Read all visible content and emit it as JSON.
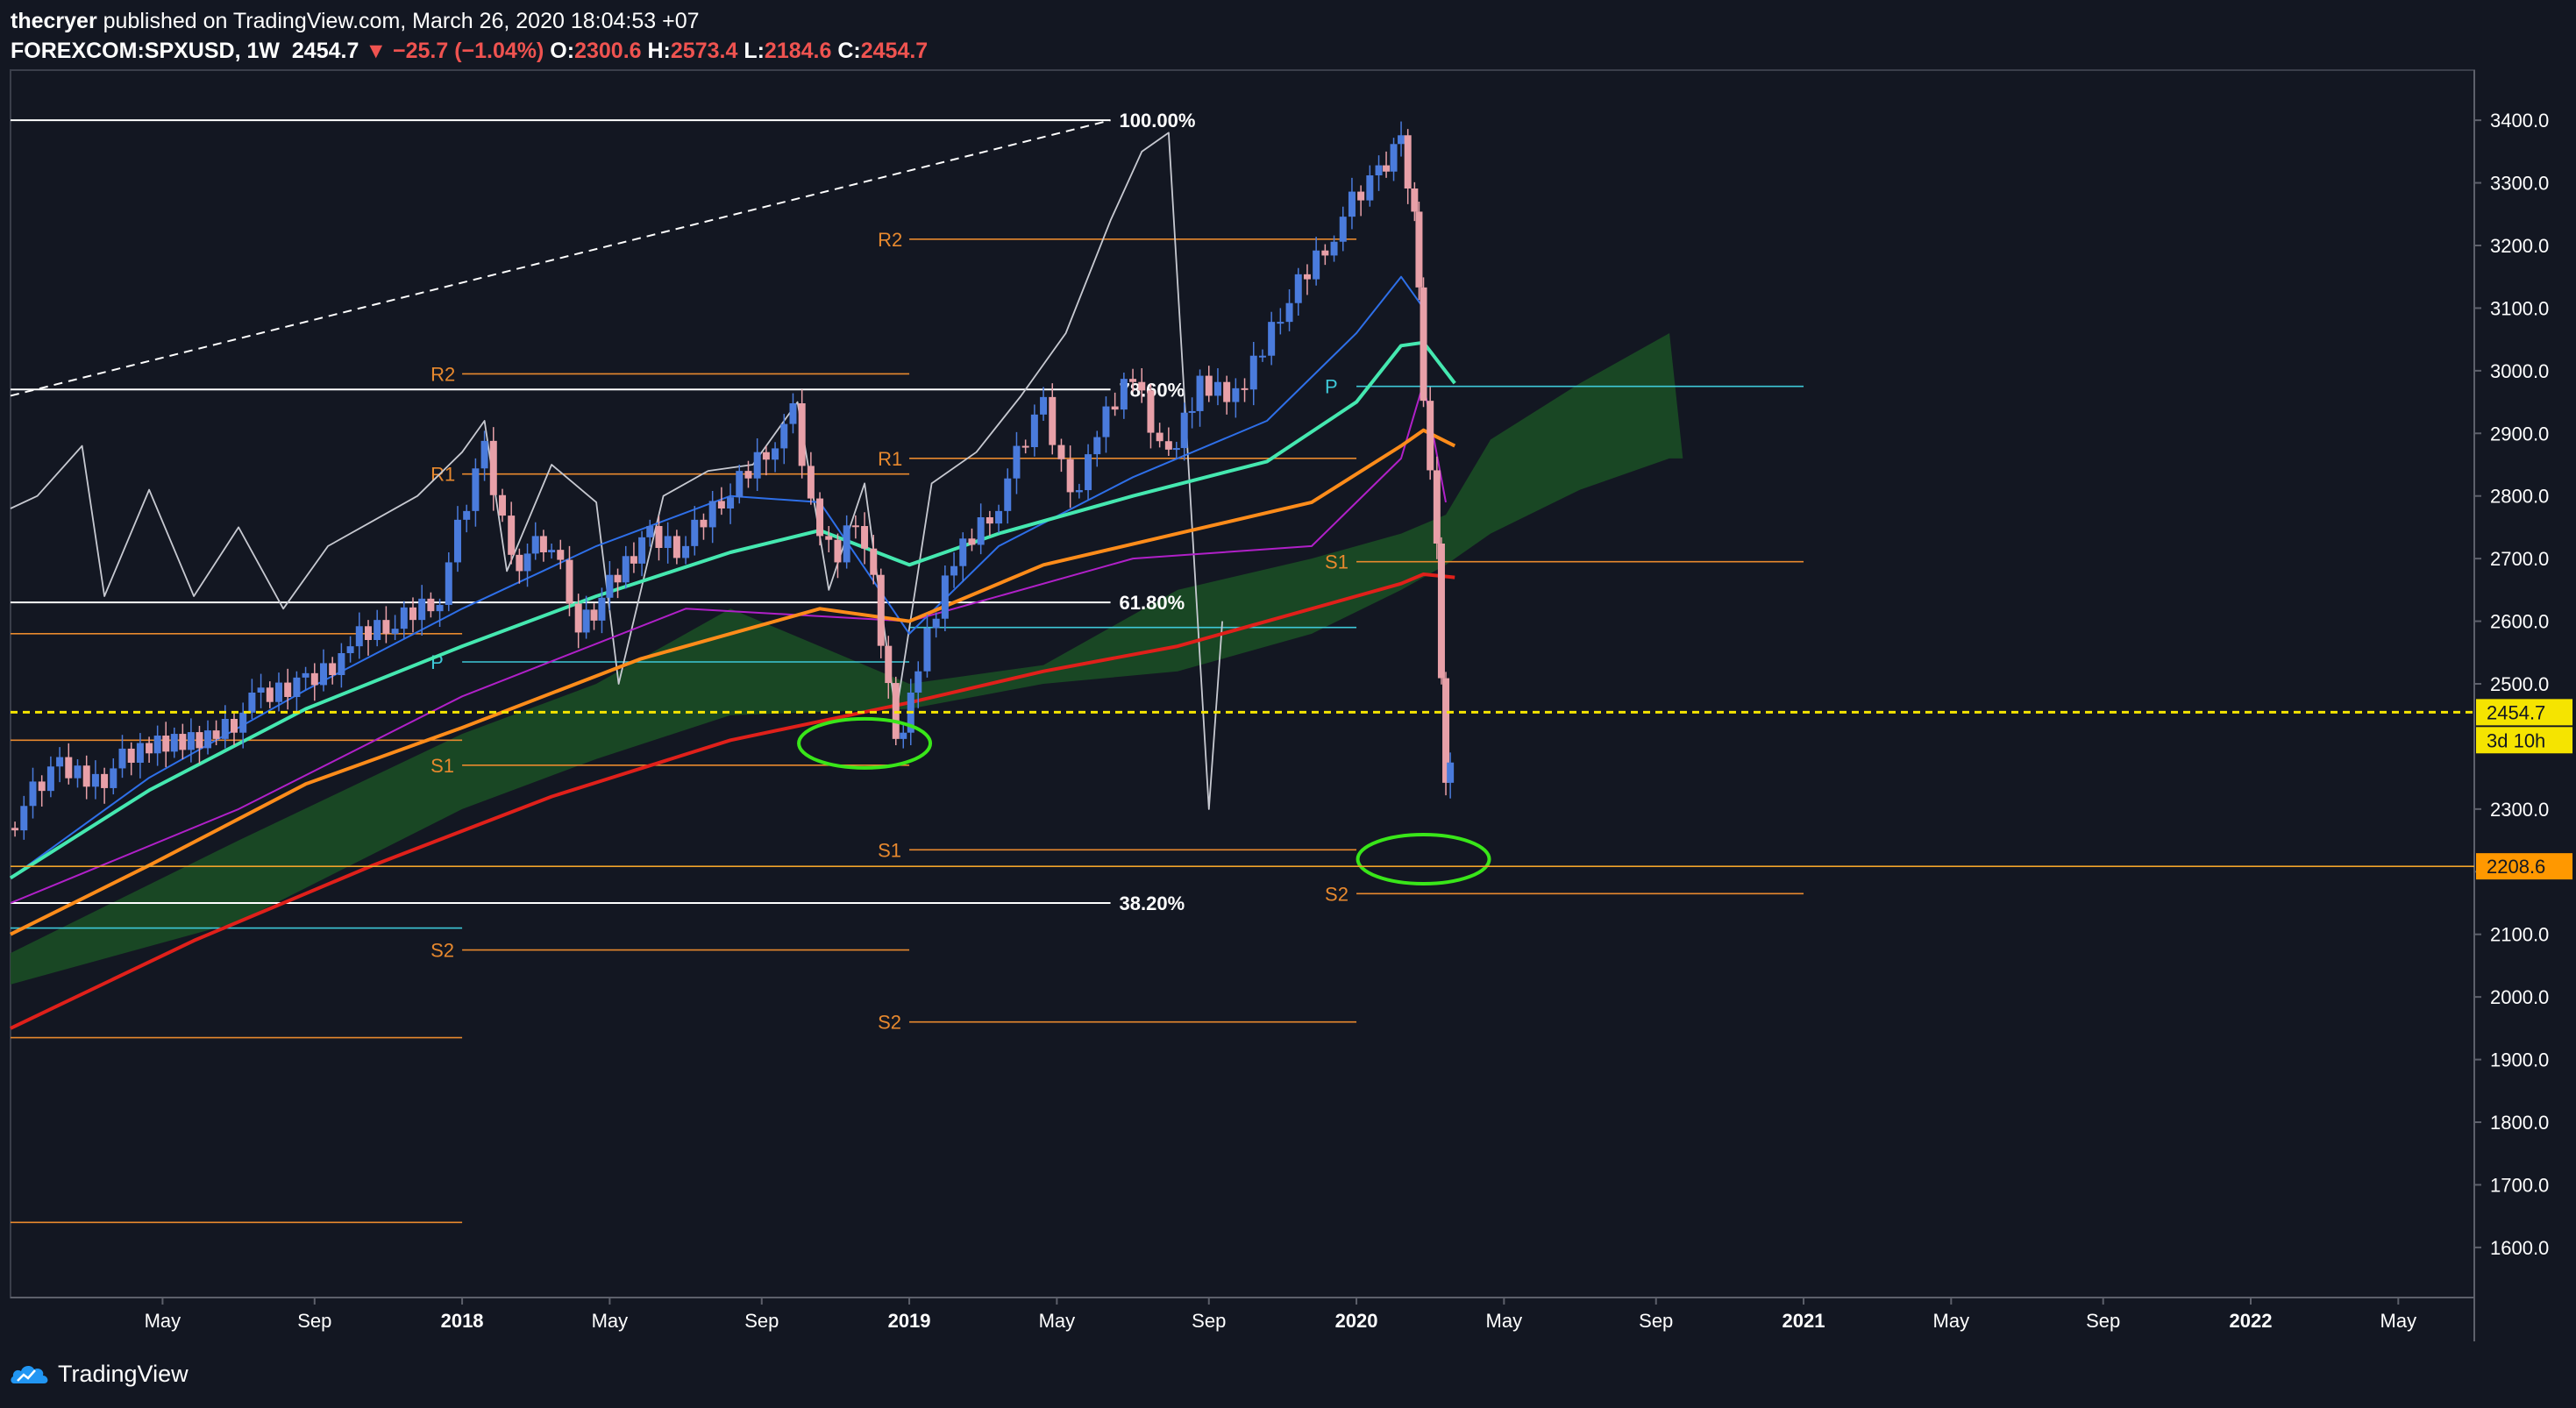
{
  "header": {
    "author": "thecryer",
    "published_text": "published on TradingView.com, March 26, 2020 18:04:53 +07",
    "symbol": "FOREXCOM:SPXUSD, 1W",
    "last": "2454.7",
    "change": "▼ −25.7 (−1.04%)",
    "o_label": "O:",
    "o": "2300.6",
    "h_label": "H:",
    "h": "2573.4",
    "l_label": "L:",
    "l": "2184.6",
    "c_label": "C:",
    "c": "2454.7"
  },
  "footer": {
    "brand": "TradingView"
  },
  "colors": {
    "background": "#131722",
    "candle_up": "#4a7bdc",
    "candle_down": "#e8a0a8",
    "price_line": "#f5e400",
    "ma_teal": "#45e8b0",
    "ma_orange": "#ff8c1a",
    "ma_red": "#e0201a",
    "pivot": "#e8892e",
    "pivot_p": "#3ec8d8",
    "cloud": "#1b4d25",
    "annotation": "#39e619"
  },
  "chart_data": {
    "type": "line",
    "instrument": "FOREXCOM:SPXUSD",
    "interval": "1W",
    "ylim": [
      1520,
      3480
    ],
    "y_ticks": [
      "3400.0",
      "3300.0",
      "3200.0",
      "3100.0",
      "3000.0",
      "2900.0",
      "2800.0",
      "2700.0",
      "2600.0",
      "2500.0",
      "2300.0",
      "2200.0",
      "2100.0",
      "2000.0",
      "1900.0",
      "1800.0",
      "1700.0",
      "1600.0"
    ],
    "x_ticks": [
      {
        "label": "May",
        "x": 2017.33
      },
      {
        "label": "Sep",
        "x": 2017.67
      },
      {
        "label": "2018",
        "x": 2018.0
      },
      {
        "label": "May",
        "x": 2018.33
      },
      {
        "label": "Sep",
        "x": 2018.67
      },
      {
        "label": "2019",
        "x": 2019.0
      },
      {
        "label": "May",
        "x": 2019.33
      },
      {
        "label": "Sep",
        "x": 2019.67
      },
      {
        "label": "2020",
        "x": 2020.0
      },
      {
        "label": "May",
        "x": 2020.33
      },
      {
        "label": "Sep",
        "x": 2020.67
      },
      {
        "label": "2021",
        "x": 2021.0
      },
      {
        "label": "May",
        "x": 2021.33
      },
      {
        "label": "Sep",
        "x": 2021.67
      },
      {
        "label": "2022",
        "x": 2022.0
      },
      {
        "label": "May",
        "x": 2022.33
      }
    ],
    "price_labels": [
      {
        "text": "2454.7",
        "value": 2454.7,
        "style": "current"
      },
      {
        "text": "3d 10h",
        "value": 2410,
        "style": "countdown"
      },
      {
        "text": "2208.6",
        "value": 2208.6,
        "style": "low"
      }
    ],
    "current_price": 2454.7,
    "low_line": 2208.6,
    "series": [
      {
        "name": "",
        "role": "close",
        "values": [
          [
            2017.0,
            2290
          ],
          [
            2017.1,
            2365
          ],
          [
            2017.18,
            2350
          ],
          [
            2017.3,
            2395
          ],
          [
            2017.45,
            2430
          ],
          [
            2017.55,
            2470
          ],
          [
            2017.65,
            2505
          ],
          [
            2017.75,
            2560
          ],
          [
            2017.85,
            2600
          ],
          [
            2017.95,
            2650
          ],
          [
            2018.05,
            2870
          ],
          [
            2018.11,
            2700
          ],
          [
            2018.2,
            2720
          ],
          [
            2018.26,
            2600
          ],
          [
            2018.33,
            2650
          ],
          [
            2018.42,
            2740
          ],
          [
            2018.5,
            2720
          ],
          [
            2018.6,
            2810
          ],
          [
            2018.7,
            2900
          ],
          [
            2018.74,
            2930
          ],
          [
            2018.78,
            2790
          ],
          [
            2018.84,
            2700
          ],
          [
            2018.88,
            2770
          ],
          [
            2018.92,
            2650
          ],
          [
            2018.97,
            2400
          ],
          [
            2019.02,
            2520
          ],
          [
            2019.1,
            2700
          ],
          [
            2019.2,
            2800
          ],
          [
            2019.3,
            2940
          ],
          [
            2019.36,
            2800
          ],
          [
            2019.42,
            2900
          ],
          [
            2019.5,
            3000
          ],
          [
            2019.58,
            2850
          ],
          [
            2019.65,
            2980
          ],
          [
            2019.75,
            2970
          ],
          [
            2019.85,
            3120
          ],
          [
            2019.95,
            3230
          ],
          [
            2020.05,
            3310
          ],
          [
            2020.1,
            3370
          ],
          [
            2020.13,
            3260
          ],
          [
            2020.15,
            2970
          ],
          [
            2020.18,
            2700
          ],
          [
            2020.2,
            2330
          ],
          [
            2020.22,
            2454.7
          ]
        ]
      },
      {
        "name": "",
        "role": "ma_teal",
        "values": [
          [
            2016.99,
            2190
          ],
          [
            2017.3,
            2330
          ],
          [
            2017.65,
            2460
          ],
          [
            2018.0,
            2560
          ],
          [
            2018.3,
            2640
          ],
          [
            2018.6,
            2710
          ],
          [
            2018.8,
            2745
          ],
          [
            2019.0,
            2690
          ],
          [
            2019.2,
            2740
          ],
          [
            2019.5,
            2800
          ],
          [
            2019.8,
            2855
          ],
          [
            2020.0,
            2950
          ],
          [
            2020.1,
            3040
          ],
          [
            2020.15,
            3045
          ],
          [
            2020.22,
            2980
          ]
        ]
      },
      {
        "name": "",
        "role": "ma_orange",
        "values": [
          [
            2016.99,
            2100
          ],
          [
            2017.3,
            2210
          ],
          [
            2017.65,
            2340
          ],
          [
            2018.0,
            2430
          ],
          [
            2018.4,
            2540
          ],
          [
            2018.8,
            2620
          ],
          [
            2019.0,
            2600
          ],
          [
            2019.3,
            2690
          ],
          [
            2019.6,
            2740
          ],
          [
            2019.9,
            2790
          ],
          [
            2020.1,
            2880
          ],
          [
            2020.15,
            2905
          ],
          [
            2020.22,
            2880
          ]
        ]
      },
      {
        "name": "",
        "role": "ma_red",
        "values": [
          [
            2016.99,
            1950
          ],
          [
            2017.4,
            2090
          ],
          [
            2017.8,
            2210
          ],
          [
            2018.2,
            2320
          ],
          [
            2018.6,
            2410
          ],
          [
            2019.0,
            2470
          ],
          [
            2019.3,
            2520
          ],
          [
            2019.6,
            2560
          ],
          [
            2019.9,
            2620
          ],
          [
            2020.1,
            2660
          ],
          [
            2020.15,
            2675
          ],
          [
            2020.22,
            2670
          ]
        ]
      },
      {
        "name": "",
        "role": "oscillator",
        "values": [
          [
            2016.99,
            2780
          ],
          [
            2017.05,
            2800
          ],
          [
            2017.15,
            2880
          ],
          [
            2017.2,
            2640
          ],
          [
            2017.3,
            2810
          ],
          [
            2017.4,
            2640
          ],
          [
            2017.5,
            2750
          ],
          [
            2017.6,
            2620
          ],
          [
            2017.7,
            2720
          ],
          [
            2017.8,
            2760
          ],
          [
            2017.9,
            2800
          ],
          [
            2018.0,
            2870
          ],
          [
            2018.05,
            2920
          ],
          [
            2018.1,
            2680
          ],
          [
            2018.2,
            2850
          ],
          [
            2018.3,
            2790
          ],
          [
            2018.35,
            2500
          ],
          [
            2018.45,
            2800
          ],
          [
            2018.55,
            2840
          ],
          [
            2018.65,
            2850
          ],
          [
            2018.75,
            2950
          ],
          [
            2018.82,
            2650
          ],
          [
            2018.9,
            2820
          ],
          [
            2018.97,
            2450
          ],
          [
            2019.05,
            2820
          ],
          [
            2019.15,
            2870
          ],
          [
            2019.25,
            2960
          ],
          [
            2019.35,
            3060
          ],
          [
            2019.45,
            3240
          ],
          [
            2019.52,
            3350
          ],
          [
            2019.58,
            3380
          ],
          [
            2019.62,
            2900
          ],
          [
            2019.67,
            2300
          ],
          [
            2019.7,
            2600
          ]
        ]
      },
      {
        "name": "",
        "role": "ma_blue",
        "values": [
          [
            2016.99,
            2190
          ],
          [
            2017.3,
            2350
          ],
          [
            2017.65,
            2490
          ],
          [
            2018.0,
            2620
          ],
          [
            2018.3,
            2720
          ],
          [
            2018.6,
            2800
          ],
          [
            2018.8,
            2790
          ],
          [
            2019.0,
            2580
          ],
          [
            2019.2,
            2720
          ],
          [
            2019.5,
            2830
          ],
          [
            2019.8,
            2920
          ],
          [
            2020.0,
            3060
          ],
          [
            2020.1,
            3150
          ],
          [
            2020.15,
            3100
          ]
        ]
      },
      {
        "name": "",
        "role": "ma_purple",
        "values": [
          [
            2016.99,
            2150
          ],
          [
            2017.5,
            2300
          ],
          [
            2018.0,
            2480
          ],
          [
            2018.5,
            2620
          ],
          [
            2019.0,
            2600
          ],
          [
            2019.5,
            2700
          ],
          [
            2019.9,
            2720
          ],
          [
            2020.1,
            2860
          ],
          [
            2020.15,
            2980
          ],
          [
            2020.2,
            2790
          ]
        ]
      },
      {
        "name": "",
        "role": "cloud_top",
        "values": [
          [
            2016.99,
            2070
          ],
          [
            2017.5,
            2250
          ],
          [
            2018.0,
            2420
          ],
          [
            2018.3,
            2500
          ],
          [
            2018.6,
            2620
          ],
          [
            2019.0,
            2500
          ],
          [
            2019.3,
            2530
          ],
          [
            2019.6,
            2650
          ],
          [
            2019.9,
            2700
          ],
          [
            2020.1,
            2740
          ],
          [
            2020.2,
            2770
          ],
          [
            2020.3,
            2890
          ],
          [
            2020.5,
            2980
          ],
          [
            2020.7,
            3060
          ],
          [
            2020.73,
            2860
          ]
        ]
      },
      {
        "name": "",
        "role": "cloud_bottom",
        "values": [
          [
            2016.99,
            2020
          ],
          [
            2017.5,
            2120
          ],
          [
            2018.0,
            2300
          ],
          [
            2018.3,
            2380
          ],
          [
            2018.6,
            2450
          ],
          [
            2019.0,
            2460
          ],
          [
            2019.3,
            2500
          ],
          [
            2019.6,
            2520
          ],
          [
            2019.9,
            2580
          ],
          [
            2020.1,
            2650
          ],
          [
            2020.2,
            2690
          ],
          [
            2020.3,
            2740
          ],
          [
            2020.5,
            2810
          ],
          [
            2020.7,
            2860
          ],
          [
            2020.73,
            2860
          ]
        ]
      }
    ],
    "horizontal_lines": [
      {
        "label": "100.00%",
        "value": 3400,
        "x1": 2016.99,
        "x2": 2019.45,
        "kind": "fib"
      },
      {
        "label": "78.60%",
        "value": 2970,
        "x1": 2016.99,
        "x2": 2019.45,
        "kind": "fib"
      },
      {
        "label": "61.80%",
        "value": 2630,
        "x1": 2016.99,
        "x2": 2019.45,
        "kind": "fib"
      },
      {
        "label": "38.20%",
        "value": 2150,
        "x1": 2016.99,
        "x2": 2019.45,
        "kind": "fib"
      },
      {
        "label": "R2",
        "value": 3210,
        "x1": 2019.0,
        "x2": 2020.0,
        "kind": "pivot"
      },
      {
        "label": "R2",
        "value": 2995,
        "x1": 2018.0,
        "x2": 2019.0,
        "kind": "pivot"
      },
      {
        "label": "R1",
        "value": 2835,
        "x1": 2018.0,
        "x2": 2019.0,
        "kind": "pivot"
      },
      {
        "label": "R1",
        "value": 2860,
        "x1": 2019.0,
        "x2": 2020.0,
        "kind": "pivot"
      },
      {
        "label": "S1",
        "value": 2695,
        "x1": 2020.0,
        "x2": 2021.0,
        "kind": "pivot"
      },
      {
        "label": "S1",
        "value": 2370,
        "x1": 2018.0,
        "x2": 2019.0,
        "kind": "pivot"
      },
      {
        "label": "S1",
        "value": 2235,
        "x1": 2019.0,
        "x2": 2020.0,
        "kind": "pivot"
      },
      {
        "label": "S2",
        "value": 2165,
        "x1": 2020.0,
        "x2": 2021.0,
        "kind": "pivot"
      },
      {
        "label": "S2",
        "value": 2075,
        "x1": 2018.0,
        "x2": 2019.0,
        "kind": "pivot"
      },
      {
        "label": "S2",
        "value": 1960,
        "x1": 2019.0,
        "x2": 2020.0,
        "kind": "pivot"
      },
      {
        "label": "",
        "value": 2580,
        "x1": 2016.99,
        "x2": 2018.0,
        "kind": "pivot"
      },
      {
        "label": "",
        "value": 2410,
        "x1": 2016.99,
        "x2": 2018.0,
        "kind": "pivot"
      },
      {
        "label": "",
        "value": 1935,
        "x1": 2016.99,
        "x2": 2018.0,
        "kind": "pivot"
      },
      {
        "label": "",
        "value": 1640,
        "x1": 2016.99,
        "x2": 2018.0,
        "kind": "pivot"
      },
      {
        "label": "P",
        "value": 2975,
        "x1": 2020.0,
        "x2": 2021.0,
        "kind": "pivot_p"
      },
      {
        "label": "P",
        "value": 2535,
        "x1": 2018.0,
        "x2": 2019.0,
        "kind": "pivot_p"
      },
      {
        "label": "",
        "value": 2590,
        "x1": 2019.0,
        "x2": 2020.0,
        "kind": "pivot_p"
      },
      {
        "label": "",
        "value": 2110,
        "x1": 2016.99,
        "x2": 2018.0,
        "kind": "pivot_p"
      }
    ],
    "trend_line": {
      "from": [
        2016.99,
        2960
      ],
      "to": [
        2019.45,
        3400
      ]
    },
    "annotations": [
      {
        "shape": "ellipse",
        "center": [
          2018.9,
          2405
        ],
        "kind": "green-circle"
      },
      {
        "shape": "ellipse",
        "center": [
          2020.15,
          2220
        ],
        "kind": "green-circle"
      }
    ]
  }
}
